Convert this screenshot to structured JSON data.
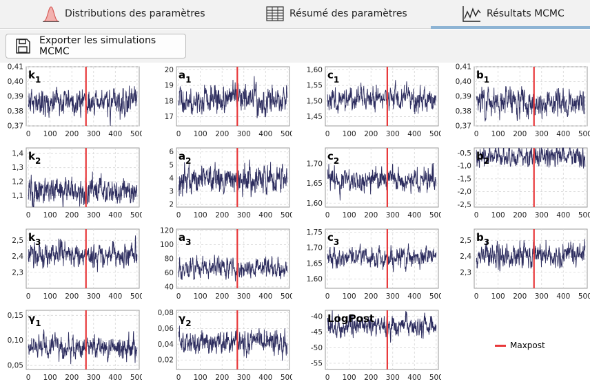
{
  "tabs": [
    {
      "label": "Distributions des paramètres",
      "icon": "bell-curve-icon"
    },
    {
      "label": "Résumé des paramètres",
      "icon": "table-icon"
    },
    {
      "label": "Résultats MCMC",
      "icon": "trace-chart-icon",
      "active": true
    }
  ],
  "toolbar": {
    "export_label": "Exporter les simulations MCMC",
    "export_icon": "save-icon"
  },
  "legend": {
    "maxpost_label": "Maxpost",
    "maxpost_color": "#e8383a"
  },
  "colors": {
    "trace": "#2c2c5e",
    "maxpost": "#e8383a",
    "grid": "#d6d6d6"
  },
  "chart_data": [
    {
      "type": "line",
      "param": "k",
      "sub": "1",
      "x_ticks": [
        0,
        100,
        200,
        300,
        400,
        500
      ],
      "y_ticks": [
        "0,37",
        "0,38",
        "0,39",
        "0,40",
        "0,41"
      ],
      "ylim": [
        0.37,
        0.41
      ],
      "maxpost_x": 265,
      "seed": 11,
      "mean": 0.386,
      "sd": 0.006
    },
    {
      "type": "line",
      "param": "a",
      "sub": "1",
      "x_ticks": [
        0,
        100,
        200,
        300,
        400,
        500
      ],
      "y_ticks": [
        "17",
        "18",
        "19",
        "20"
      ],
      "ylim": [
        16.4,
        20.2
      ],
      "maxpost_x": 270,
      "seed": 12,
      "mean": 18.0,
      "sd": 0.6
    },
    {
      "type": "line",
      "param": "c",
      "sub": "1",
      "x_ticks": [
        0,
        100,
        200,
        300,
        400,
        500
      ],
      "y_ticks": [
        "1,45",
        "1,50",
        "1,55",
        "1,60"
      ],
      "ylim": [
        1.42,
        1.61
      ],
      "maxpost_x": 275,
      "seed": 13,
      "mean": 1.505,
      "sd": 0.025
    },
    {
      "type": "line",
      "param": "b",
      "sub": "1",
      "x_ticks": [
        0,
        100,
        200,
        300,
        400,
        500
      ],
      "y_ticks": [
        "0,37",
        "0,38",
        "0,39",
        "0,40",
        "0,41"
      ],
      "ylim": [
        0.37,
        0.41
      ],
      "maxpost_x": 265,
      "seed": 14,
      "mean": 0.386,
      "sd": 0.006
    },
    {
      "type": "line",
      "param": "k",
      "sub": "2",
      "x_ticks": [
        0,
        100,
        200,
        300,
        400,
        500
      ],
      "y_ticks": [
        "1,1",
        "1,2",
        "1,3",
        "1,4"
      ],
      "ylim": [
        1.02,
        1.44
      ],
      "maxpost_x": 265,
      "seed": 21,
      "mean": 1.13,
      "sd": 0.06
    },
    {
      "type": "line",
      "param": "a",
      "sub": "2",
      "x_ticks": [
        0,
        100,
        200,
        300,
        400,
        500
      ],
      "y_ticks": [
        "2",
        "3",
        "4",
        "5",
        "6"
      ],
      "ylim": [
        1.8,
        6.3
      ],
      "maxpost_x": 270,
      "seed": 22,
      "mean": 3.9,
      "sd": 0.7
    },
    {
      "type": "line",
      "param": "c",
      "sub": "2",
      "x_ticks": [
        0,
        100,
        200,
        300,
        400,
        500
      ],
      "y_ticks": [
        "1,60",
        "1,65",
        "1,70"
      ],
      "ylim": [
        1.59,
        1.74
      ],
      "maxpost_x": 275,
      "seed": 23,
      "mean": 1.66,
      "sd": 0.02
    },
    {
      "type": "line",
      "param": "b",
      "sub": "2",
      "x_ticks": [
        0,
        100,
        200,
        300,
        400,
        500
      ],
      "y_ticks": [
        "-2,5",
        "-2,0",
        "-1,5",
        "-1,0",
        "-0,5"
      ],
      "ylim": [
        -2.6,
        -0.3
      ],
      "maxpost_x": 265,
      "seed": 24,
      "mean": -0.65,
      "sd": 0.25
    },
    {
      "type": "line",
      "param": "k",
      "sub": "3",
      "x_ticks": [
        0,
        100,
        200,
        300,
        400,
        500
      ],
      "y_ticks": [
        "2,3",
        "2,4",
        "2,5"
      ],
      "ylim": [
        2.2,
        2.57
      ],
      "maxpost_x": 265,
      "seed": 31,
      "mean": 2.41,
      "sd": 0.05
    },
    {
      "type": "line",
      "param": "a",
      "sub": "3",
      "x_ticks": [
        0,
        100,
        200,
        300,
        400,
        500
      ],
      "y_ticks": [
        "40",
        "60",
        "80",
        "100",
        "120"
      ],
      "ylim": [
        38,
        122
      ],
      "maxpost_x": 270,
      "seed": 32,
      "mean": 68,
      "sd": 9
    },
    {
      "type": "line",
      "param": "c",
      "sub": "3",
      "x_ticks": [
        0,
        100,
        200,
        300,
        400,
        500
      ],
      "y_ticks": [
        "1,60",
        "1,65",
        "1,70",
        "1,75"
      ],
      "ylim": [
        1.57,
        1.76
      ],
      "maxpost_x": 275,
      "seed": 33,
      "mean": 1.67,
      "sd": 0.02
    },
    {
      "type": "line",
      "param": "b",
      "sub": "3",
      "x_ticks": [
        0,
        100,
        200,
        300,
        400,
        500
      ],
      "y_ticks": [
        "2,3",
        "2,4",
        "2,5"
      ],
      "ylim": [
        2.2,
        2.57
      ],
      "maxpost_x": 265,
      "seed": 34,
      "mean": 2.41,
      "sd": 0.05
    },
    {
      "type": "line",
      "param": "γ",
      "sub": "1",
      "x_ticks": [
        0,
        100,
        200,
        300,
        400,
        500
      ],
      "y_ticks": [
        "0,05",
        "0,10",
        "0,15"
      ],
      "ylim": [
        0.042,
        0.16
      ],
      "maxpost_x": 265,
      "seed": 41,
      "mean": 0.085,
      "sd": 0.015
    },
    {
      "type": "line",
      "param": "γ",
      "sub": "2",
      "x_ticks": [
        0,
        100,
        200,
        300,
        400,
        500
      ],
      "y_ticks": [
        "0,02",
        "0,04",
        "0,06",
        "0,08"
      ],
      "ylim": [
        0.008,
        0.083
      ],
      "maxpost_x": 270,
      "seed": 42,
      "mean": 0.042,
      "sd": 0.01
    },
    {
      "type": "line",
      "param": "LogPost",
      "sub": "",
      "x_ticks": [
        0,
        100,
        200,
        300,
        400,
        500
      ],
      "y_ticks": [
        "-55",
        "-50",
        "-45",
        "-40"
      ],
      "ylim": [
        -57,
        -38
      ],
      "maxpost_x": 275,
      "seed": 43,
      "mean": -43,
      "sd": 2.2
    }
  ]
}
